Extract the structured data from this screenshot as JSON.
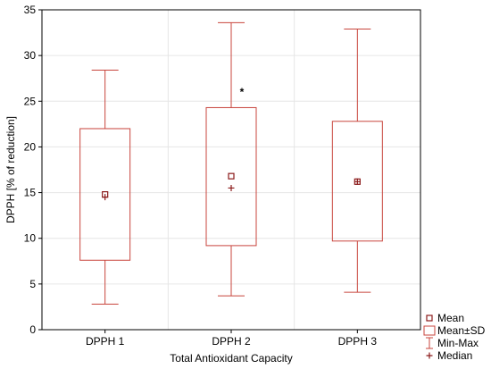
{
  "chart_data": {
    "type": "box",
    "xlabel": "Total Antioxidant Capacity",
    "ylabel": "DPPH [% of reduction]",
    "ylim": [
      0,
      35
    ],
    "yticks": [
      0,
      5,
      10,
      15,
      20,
      25,
      30,
      35
    ],
    "grid": true,
    "legend_position": "bottom-right",
    "colors": {
      "box": "#c8443c",
      "mean_marker": "#8b1a1a",
      "grid": "#e6e6e6",
      "axis": "#000000"
    },
    "categories": [
      "DPPH 1",
      "DPPH 2",
      "DPPH 3"
    ],
    "boxes": [
      {
        "mean": 14.8,
        "sd_low": 7.6,
        "sd_high": 22.0,
        "min": 2.8,
        "max": 28.4,
        "median": 14.5
      },
      {
        "mean": 16.8,
        "sd_low": 9.2,
        "sd_high": 24.3,
        "min": 3.7,
        "max": 33.6,
        "median": 15.5
      },
      {
        "mean": 16.2,
        "sd_low": 9.7,
        "sd_high": 22.8,
        "min": 4.1,
        "max": 32.9,
        "median": 16.2
      }
    ],
    "annotations": [
      {
        "category_index": 1,
        "y": 26.2,
        "text": "*"
      }
    ],
    "legend": [
      {
        "symbol": "square",
        "label": "Mean"
      },
      {
        "symbol": "box",
        "label": "Mean±SD"
      },
      {
        "symbol": "whisker",
        "label": "Min-Max"
      },
      {
        "symbol": "plus",
        "label": "Median"
      }
    ]
  }
}
